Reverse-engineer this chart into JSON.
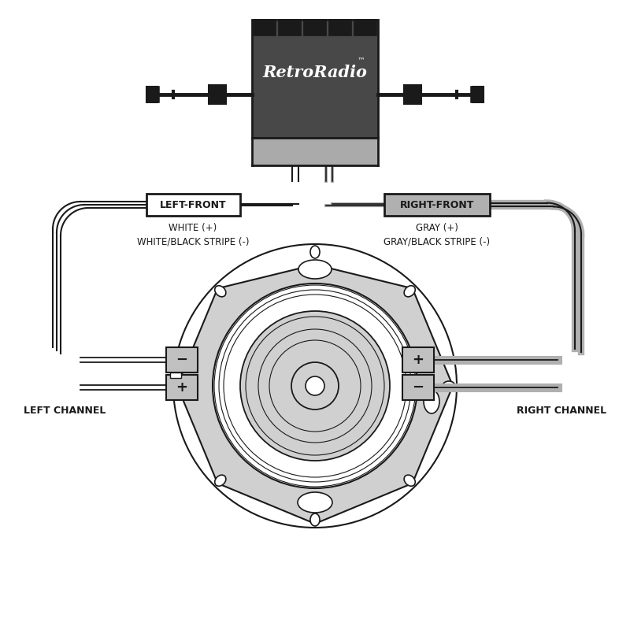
{
  "bg_color": "#ffffff",
  "line_color": "#1a1a1a",
  "radio_dark": "#484848",
  "radio_light": "#aaaaaa",
  "speaker_gray": "#d0d0d0",
  "wire_gray": "#b0b0b0",
  "terminal_gray": "#c0c0c0",
  "left_front_label": "LEFT-FRONT",
  "right_front_label": "RIGHT-FRONT",
  "left_wire_label1": "WHITE (+)",
  "left_wire_label2": "WHITE/BLACK STRIPE (-)",
  "right_wire_label1": "GRAY (+)",
  "right_wire_label2": "GRAY/BLACK STRIPE (-)",
  "left_channel_label": "LEFT CHANNEL",
  "right_channel_label": "RIGHT CHANNEL"
}
